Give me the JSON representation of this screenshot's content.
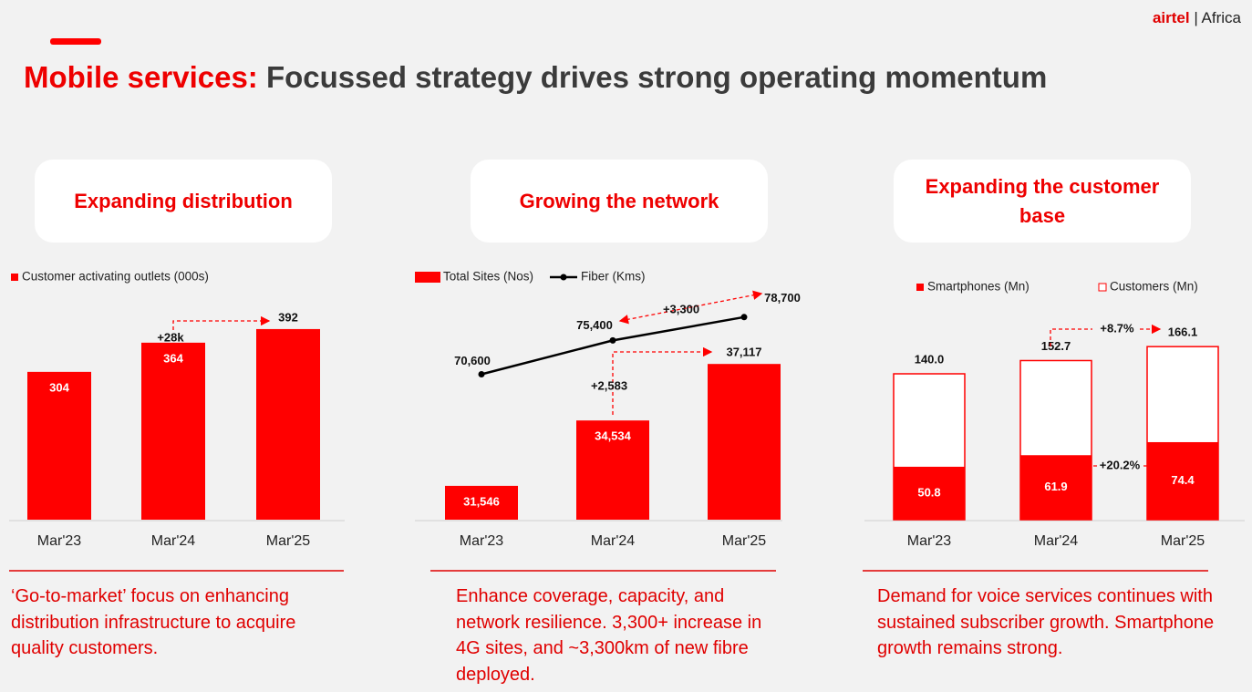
{
  "logo": {
    "brand": "airtel",
    "region": "Africa"
  },
  "title": {
    "highlight": "Mobile services:",
    "rest": "Focussed strategy drives strong operating momentum"
  },
  "chart_data": [
    {
      "type": "bar",
      "heading": "Expanding distribution",
      "categories": [
        "Mar'23",
        "Mar'24",
        "Mar'25"
      ],
      "series": [
        {
          "name": "Customer activating outlets (000s)",
          "color": "#ff0000",
          "values": [
            304,
            364,
            392
          ]
        }
      ],
      "ylim": [
        0,
        450
      ],
      "annotations": [
        "+28k"
      ],
      "caption": "‘Go-to-market’ focus on enhancing distribution infrastructure to acquire quality customers."
    },
    {
      "type": "bar_line",
      "heading": "Growing the network",
      "categories": [
        "Mar'23",
        "Mar'24",
        "Mar'25"
      ],
      "series": [
        {
          "name": "Total Sites (Nos)",
          "color": "#ff0000",
          "values": [
            31546,
            34534,
            37117
          ],
          "value_labels": [
            "31,546",
            "34,534",
            "37,117"
          ]
        },
        {
          "name": "Fiber (Kms)",
          "color": "#000000",
          "type": "line",
          "axis": "y2",
          "values": [
            70600,
            75400,
            78700
          ],
          "value_labels": [
            "70,600",
            "75,400",
            "78,700"
          ]
        }
      ],
      "ylim": [
        30000,
        40000
      ],
      "y2lim": [
        50000,
        81000
      ],
      "annotations": [
        "+2,583",
        "+3,300"
      ],
      "caption": "Enhance coverage, capacity, and network resilience. 3,300+ increase in 4G sites, and ~3,300km of new fibre deployed."
    },
    {
      "type": "overlay_bar",
      "heading": "Expanding the customer base",
      "categories": [
        "Mar'23",
        "Mar'24",
        "Mar'25"
      ],
      "series": [
        {
          "name": "Smartphones (Mn)",
          "color": "#ff0000",
          "values": [
            50.8,
            61.9,
            74.4
          ]
        },
        {
          "name": "Customers (Mn)",
          "color": "#ffffff",
          "edgecolor": "#ff0000",
          "values": [
            140,
            152.7,
            166.1
          ],
          "value_labels": [
            "140.0",
            "152.7",
            "166.1"
          ]
        }
      ],
      "ylim": [
        0,
        210
      ],
      "annotations": [
        "+8.7%",
        "+20.2%"
      ],
      "caption": "Demand for voice services continues with sustained subscriber growth. Smartphone growth remains strong."
    }
  ]
}
